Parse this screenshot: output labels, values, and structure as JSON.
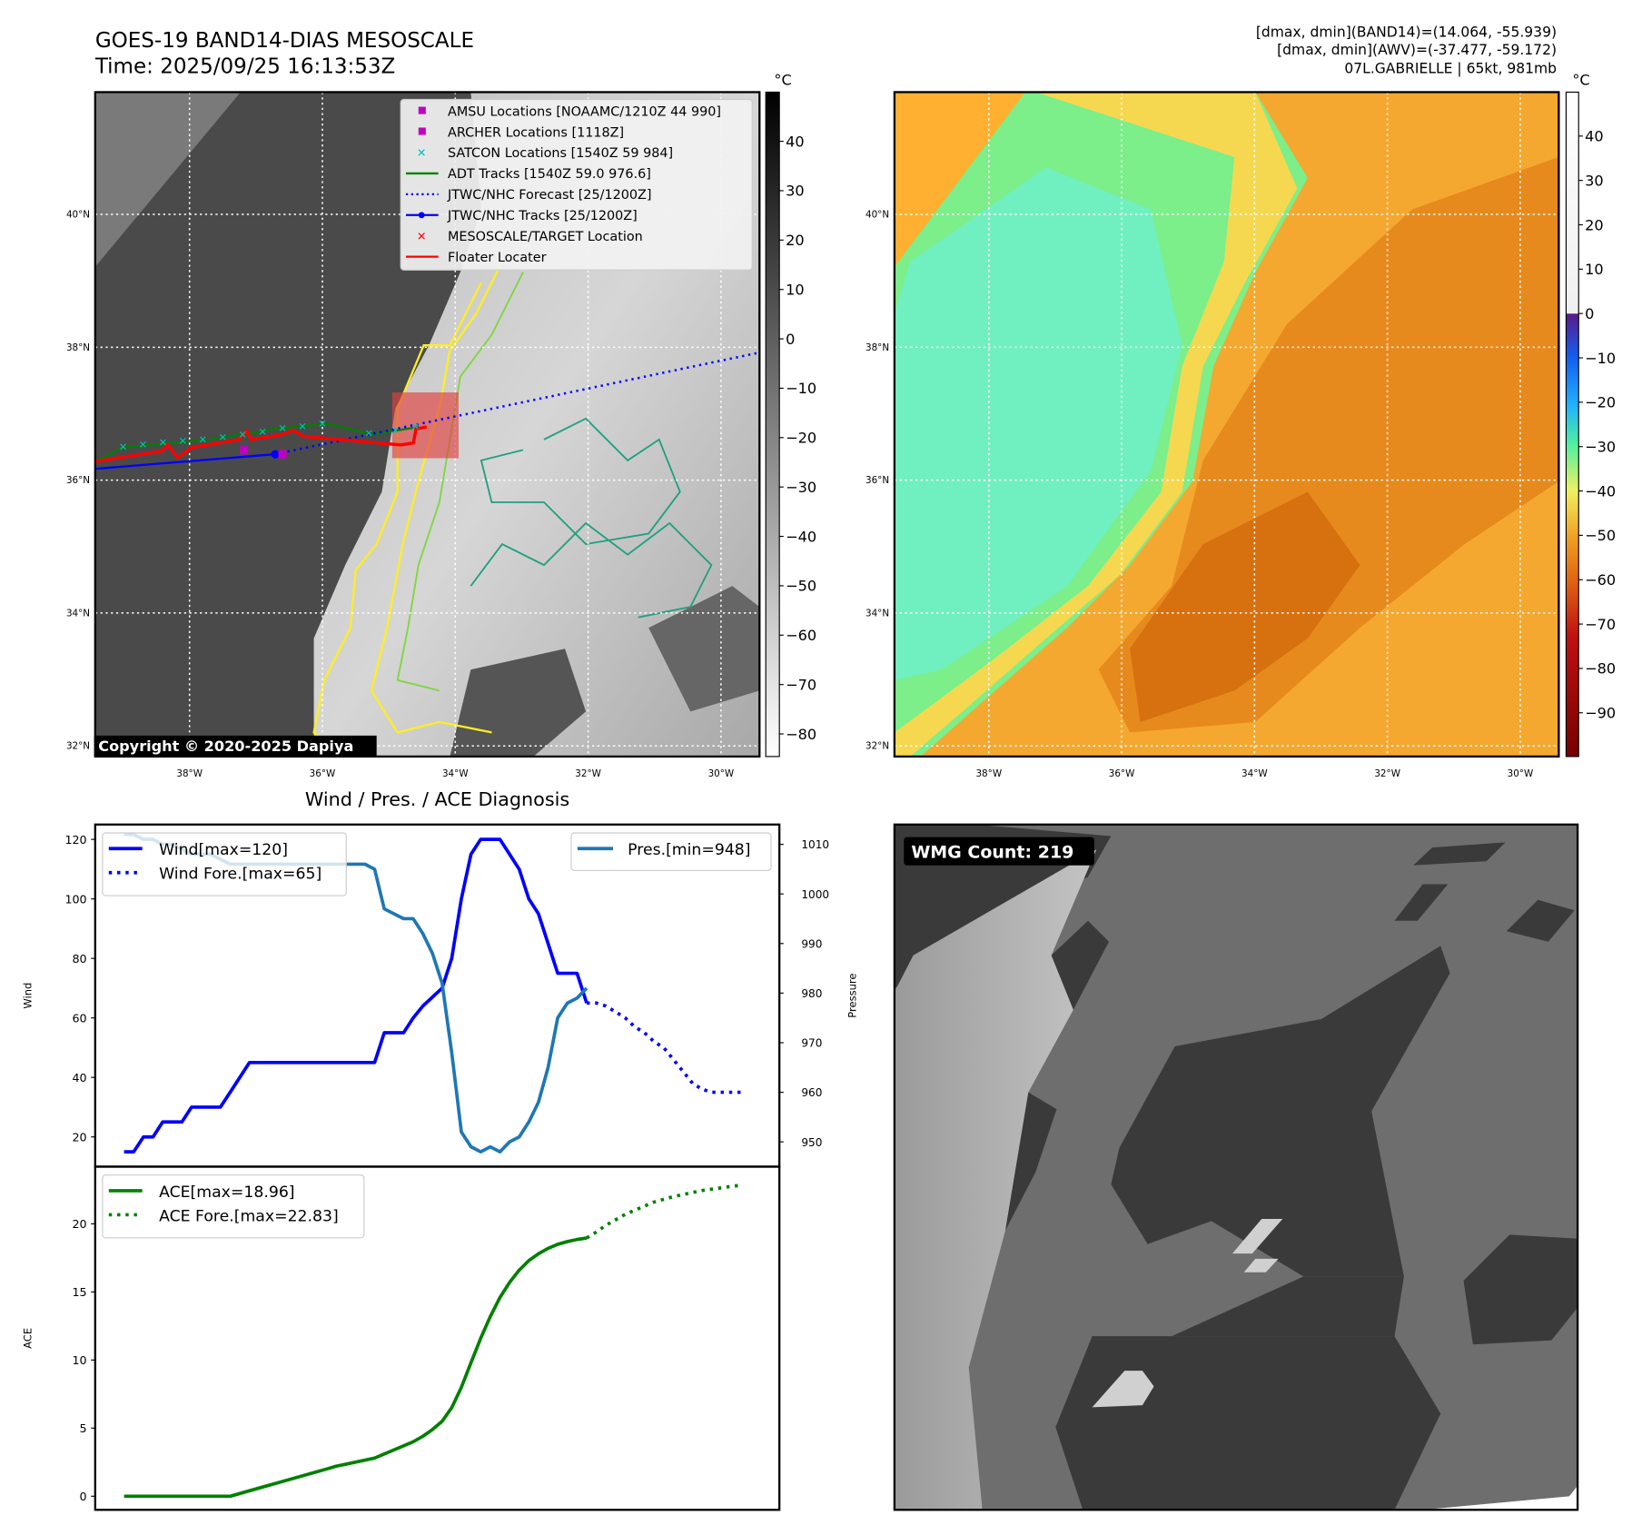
{
  "header": {
    "title": "GOES-19 BAND14-DIAS MESOSCALE",
    "time": "Time: 2025/09/25 16:13:53Z",
    "stats_band14": "[dmax, dmin](BAND14)=(14.064, -55.939)",
    "stats_awv": "[dmax, dmin](AWV)=(-37.477, -59.172)",
    "storm": "07L.GABRIELLE | 65kt, 981mb"
  },
  "map": {
    "lat_labels": [
      "40°N",
      "38°N",
      "36°N",
      "34°N",
      "32°N"
    ],
    "lat_values": [
      40,
      38,
      36,
      34,
      32
    ],
    "lon_labels": [
      "38°W",
      "36°W",
      "34°W",
      "32°W",
      "30°W"
    ],
    "lon_values": [
      -38,
      -36,
      -34,
      -32,
      -30
    ],
    "copyright": "Copyright © 2020-2025 Dapiya",
    "unit": "°C",
    "left_colorbar_ticks": [
      "40",
      "30",
      "20",
      "10",
      "0",
      "−10",
      "−20",
      "−30",
      "−40",
      "−50",
      "−60",
      "−70",
      "−80"
    ],
    "right_colorbar_ticks": [
      "40",
      "30",
      "20",
      "10",
      "0",
      "−10",
      "−20",
      "−30",
      "−40",
      "−50",
      "−60",
      "−70",
      "−80",
      "−90"
    ],
    "legend": [
      {
        "label": "AMSU Locations [NOAAMC/1210Z 44 990]",
        "color": "#c000c0",
        "marker": "square"
      },
      {
        "label": "ARCHER Locations [1118Z]",
        "color": "#c000c0",
        "marker": "square"
      },
      {
        "label": "SATCON Locations [1540Z 59 984]",
        "color": "#00c0c0",
        "marker": "x"
      },
      {
        "label": "ADT Tracks [1540Z 59.0 976.6]",
        "color": "#008000",
        "marker": "line"
      },
      {
        "label": "JTWC/NHC Forecast [25/1200Z]",
        "color": "#0000ff",
        "marker": "dotted"
      },
      {
        "label": "JTWC/NHC Tracks [25/1200Z]",
        "color": "#0000ff",
        "marker": "line-dot"
      },
      {
        "label": "MESOSCALE/TARGET Location",
        "color": "#ff0000",
        "marker": "x"
      },
      {
        "label": "Floater Locater",
        "color": "#ff0000",
        "marker": "line"
      }
    ],
    "tracks": {
      "jtwc_track": [
        [
          -39.42,
          36.17
        ],
        [
          -36.71,
          36.39
        ]
      ],
      "jtwc_forecast": [
        [
          -36.71,
          36.39
        ],
        [
          -29.42,
          37.92
        ]
      ],
      "adt_track": [
        [
          -39.42,
          36.28
        ],
        [
          -39.0,
          36.49
        ],
        [
          -37.7,
          36.61
        ],
        [
          -36.71,
          36.77
        ],
        [
          -35.94,
          36.85
        ],
        [
          -35.26,
          36.69
        ],
        [
          -34.55,
          36.8
        ]
      ],
      "floater": [
        [
          -39.42,
          36.28
        ],
        [
          -38.41,
          36.44
        ],
        [
          -38.33,
          36.53
        ],
        [
          -38.18,
          36.34
        ],
        [
          -37.97,
          36.49
        ],
        [
          -37.26,
          36.61
        ],
        [
          -37.14,
          36.74
        ],
        [
          -37.07,
          36.61
        ],
        [
          -36.63,
          36.68
        ],
        [
          -36.44,
          36.75
        ],
        [
          -36.29,
          36.66
        ],
        [
          -34.82,
          36.53
        ],
        [
          -34.63,
          36.56
        ],
        [
          -34.59,
          36.77
        ],
        [
          -34.43,
          36.8
        ]
      ],
      "satcon": [
        [
          -39.0,
          36.49
        ],
        [
          -38.7,
          36.53
        ],
        [
          -38.4,
          36.56
        ],
        [
          -38.1,
          36.58
        ],
        [
          -37.8,
          36.6
        ],
        [
          -37.5,
          36.64
        ],
        [
          -37.2,
          36.68
        ],
        [
          -36.9,
          36.72
        ],
        [
          -36.6,
          36.77
        ],
        [
          -36.3,
          36.8
        ],
        [
          -36.0,
          36.84
        ],
        [
          -35.3,
          36.7
        ],
        [
          -34.9,
          36.74
        ],
        [
          -34.6,
          36.8
        ]
      ],
      "archer": [
        -37.18,
        36.45
      ],
      "amsu": [
        -36.6,
        36.39
      ],
      "mesoscale_box": {
        "lon": [
          -34.95,
          -33.95
        ],
        "lat": [
          36.33,
          37.32
        ]
      }
    }
  },
  "wmg": {
    "count_label": "WMG Count: 219"
  },
  "chart_data": {
    "type": "line",
    "title": "Wind / Pres. / ACE Diagnosis",
    "panels": [
      {
        "name": "wind-pressure",
        "ylabel": "Wind",
        "ylabel_right": "Pressure",
        "ylim": [
          10,
          125
        ],
        "ylim_right": [
          945,
          1014
        ],
        "yticks": [
          20,
          40,
          60,
          80,
          100,
          120
        ],
        "yticks_right": [
          950,
          960,
          970,
          980,
          990,
          1000,
          1010
        ],
        "xlim": [
          -3,
          68
        ],
        "series": [
          {
            "name": "Wind[max=120]",
            "color": "#0000ff",
            "style": "solid",
            "axis": "left",
            "x_start": 0,
            "values": [
              15,
              15,
              20,
              20,
              25,
              25,
              25,
              30,
              30,
              30,
              30,
              35,
              40,
              45,
              45,
              45,
              45,
              45,
              45,
              45,
              45,
              45,
              45,
              45,
              45,
              45,
              45,
              55,
              55,
              55,
              60,
              64,
              67,
              70,
              80,
              100,
              115,
              120,
              120,
              120,
              115,
              110,
              100,
              95,
              85,
              75,
              75,
              75,
              65
            ]
          },
          {
            "name": "Wind Fore.[max=65]",
            "color": "#0000ff",
            "style": "dotted",
            "axis": "left",
            "x_start": 48,
            "values": [
              65,
              65,
              64,
              62,
              60,
              57,
              55,
              52,
              50,
              46,
              42,
              38,
              36,
              35,
              35,
              35,
              35
            ]
          },
          {
            "name": "Pres.[min=948]",
            "color": "#1f77b4",
            "style": "solid",
            "axis": "right",
            "x_start": 0,
            "values": [
              1012,
              1012,
              1011,
              1011,
              1010,
              1010,
              1009,
              1008,
              1008,
              1008,
              1007,
              1006,
              1006,
              1006,
              1006,
              1006,
              1006,
              1006,
              1006,
              1006,
              1006,
              1006,
              1006,
              1006,
              1006,
              1006,
              1005,
              997,
              996,
              995,
              995,
              992,
              988,
              982,
              968,
              952,
              949,
              948,
              949,
              948,
              950,
              951,
              954,
              958,
              965,
              975,
              978,
              979,
              981
            ]
          }
        ]
      },
      {
        "name": "ace",
        "ylabel": "ACE",
        "ylim": [
          -1,
          24.2
        ],
        "yticks": [
          0,
          5,
          10,
          15,
          20
        ],
        "xlim": [
          -3,
          68
        ],
        "series": [
          {
            "name": "ACE[max=18.96]",
            "color": "#008000",
            "style": "solid",
            "x_start": 0,
            "values": [
              0,
              0,
              0,
              0,
              0,
              0,
              0,
              0,
              0,
              0,
              0,
              0,
              0.2,
              0.4,
              0.6,
              0.8,
              1.0,
              1.2,
              1.4,
              1.6,
              1.8,
              2.0,
              2.2,
              2.35,
              2.5,
              2.65,
              2.8,
              3.1,
              3.4,
              3.7,
              4.0,
              4.4,
              4.9,
              5.5,
              6.5,
              8.0,
              9.8,
              11.6,
              13.2,
              14.6,
              15.7,
              16.6,
              17.3,
              17.8,
              18.2,
              18.5,
              18.7,
              18.85,
              18.96
            ]
          },
          {
            "name": "ACE Fore.[max=22.83]",
            "color": "#008000",
            "style": "dotted",
            "x_start": 48,
            "values": [
              18.96,
              19.4,
              19.9,
              20.3,
              20.7,
              21.0,
              21.3,
              21.6,
              21.8,
              22.0,
              22.15,
              22.3,
              22.45,
              22.55,
              22.65,
              22.75,
              22.83
            ]
          }
        ]
      }
    ]
  }
}
